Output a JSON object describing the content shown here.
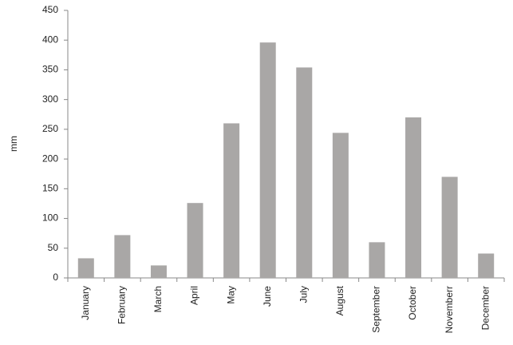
{
  "chart_data": {
    "type": "bar",
    "y_label": "mm",
    "categories": [
      "January",
      "February",
      "March",
      "April",
      "May",
      "June",
      "July",
      "August",
      "September",
      "October",
      "Novemberr",
      "December"
    ],
    "values": [
      33,
      72,
      21,
      126,
      260,
      396,
      354,
      244,
      60,
      270,
      170,
      41
    ],
    "color": "#a9a7a6",
    "ylim": [
      0,
      450
    ],
    "yticks": [
      0,
      50,
      100,
      150,
      200,
      250,
      300,
      350,
      400,
      450
    ],
    "grid": false
  }
}
